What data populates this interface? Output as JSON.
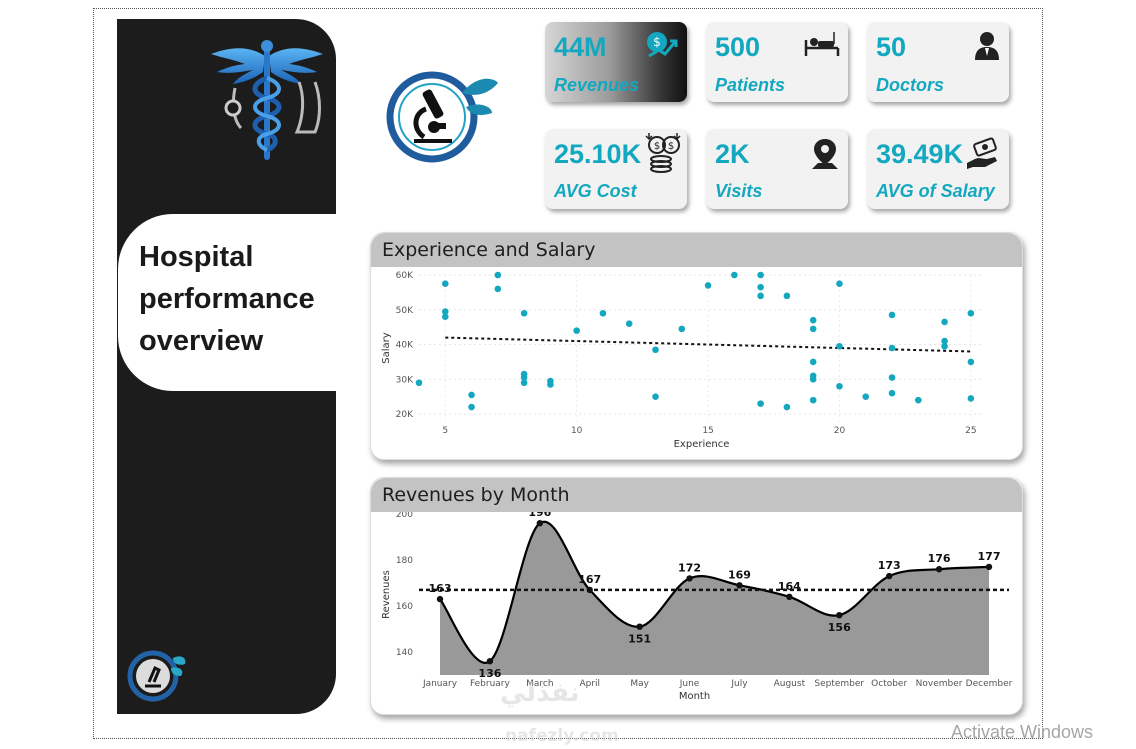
{
  "sidebar": {
    "title_lines": [
      "Hospital",
      "performance",
      "overview"
    ],
    "background": "#1c1c1c"
  },
  "kpis": [
    {
      "value": "44M",
      "label": "Revenues",
      "icon": "money-growth-icon"
    },
    {
      "value": "500",
      "label": "Patients",
      "icon": "hospital-bed-icon"
    },
    {
      "value": "50",
      "label": "Doctors",
      "icon": "doctor-icon"
    },
    {
      "value": "25.10K",
      "label": "AVG Cost",
      "icon": "coins-icon"
    },
    {
      "value": "2K",
      "label": "Visits",
      "icon": "map-pin-icon"
    },
    {
      "value": "39.49K",
      "label": "AVG of Salary",
      "icon": "salary-hand-icon"
    }
  ],
  "colors": {
    "accent": "#13a8c0",
    "line": "#000000",
    "area": "#999999"
  },
  "charts": {
    "scatter_title": "Experience and Salary",
    "line_title": "Revenues by Month"
  },
  "chart_data": [
    {
      "type": "scatter",
      "title": "Experience and Salary",
      "xlabel": "Experience",
      "ylabel": "Salary",
      "xlim": [
        4,
        25.5
      ],
      "ylim": [
        18000,
        60000
      ],
      "xticks": [
        5,
        10,
        15,
        20,
        25
      ],
      "yticks": [
        20000,
        30000,
        40000,
        50000,
        60000
      ],
      "ytick_labels": [
        "20K",
        "30K",
        "40K",
        "50K",
        "60K"
      ],
      "trendline": {
        "x": [
          5,
          25
        ],
        "y": [
          42000,
          38000
        ],
        "style": "dotted"
      },
      "points": [
        [
          4,
          29000
        ],
        [
          5,
          57500
        ],
        [
          5,
          49500
        ],
        [
          5,
          48000
        ],
        [
          6,
          25500
        ],
        [
          6,
          22000
        ],
        [
          7,
          60000
        ],
        [
          7,
          56000
        ],
        [
          8,
          49000
        ],
        [
          8,
          31500
        ],
        [
          8,
          30500
        ],
        [
          8,
          29000
        ],
        [
          9,
          29500
        ],
        [
          9,
          28500
        ],
        [
          10,
          44000
        ],
        [
          11,
          49000
        ],
        [
          12,
          46000
        ],
        [
          13,
          38500
        ],
        [
          13,
          25000
        ],
        [
          14,
          44500
        ],
        [
          15,
          57000
        ],
        [
          16,
          60000
        ],
        [
          17,
          60000
        ],
        [
          17,
          56500
        ],
        [
          17,
          54000
        ],
        [
          17,
          23000
        ],
        [
          18,
          54000
        ],
        [
          18,
          22000
        ],
        [
          19,
          47000
        ],
        [
          19,
          44500
        ],
        [
          19,
          35000
        ],
        [
          19,
          31000
        ],
        [
          19,
          30000
        ],
        [
          19,
          24000
        ],
        [
          20,
          57500
        ],
        [
          20,
          39500
        ],
        [
          20,
          28000
        ],
        [
          21,
          25000
        ],
        [
          22,
          48500
        ],
        [
          22,
          39000
        ],
        [
          22,
          30500
        ],
        [
          22,
          26000
        ],
        [
          23,
          24000
        ],
        [
          24,
          46500
        ],
        [
          24,
          41000
        ],
        [
          24,
          39500
        ],
        [
          25,
          49000
        ],
        [
          25,
          35000
        ],
        [
          25,
          24500
        ]
      ]
    },
    {
      "type": "area",
      "title": "Revenues by Month",
      "xlabel": "Month",
      "ylabel": "Revenues",
      "ylim": [
        130,
        200
      ],
      "yticks": [
        140,
        160,
        180,
        200
      ],
      "categories": [
        "January",
        "February",
        "March",
        "April",
        "May",
        "June",
        "July",
        "August",
        "September",
        "October",
        "November",
        "December"
      ],
      "values": [
        163,
        136,
        196,
        167,
        151,
        172,
        169,
        164,
        156,
        173,
        176,
        177
      ],
      "average_line": 167
    }
  ]
}
